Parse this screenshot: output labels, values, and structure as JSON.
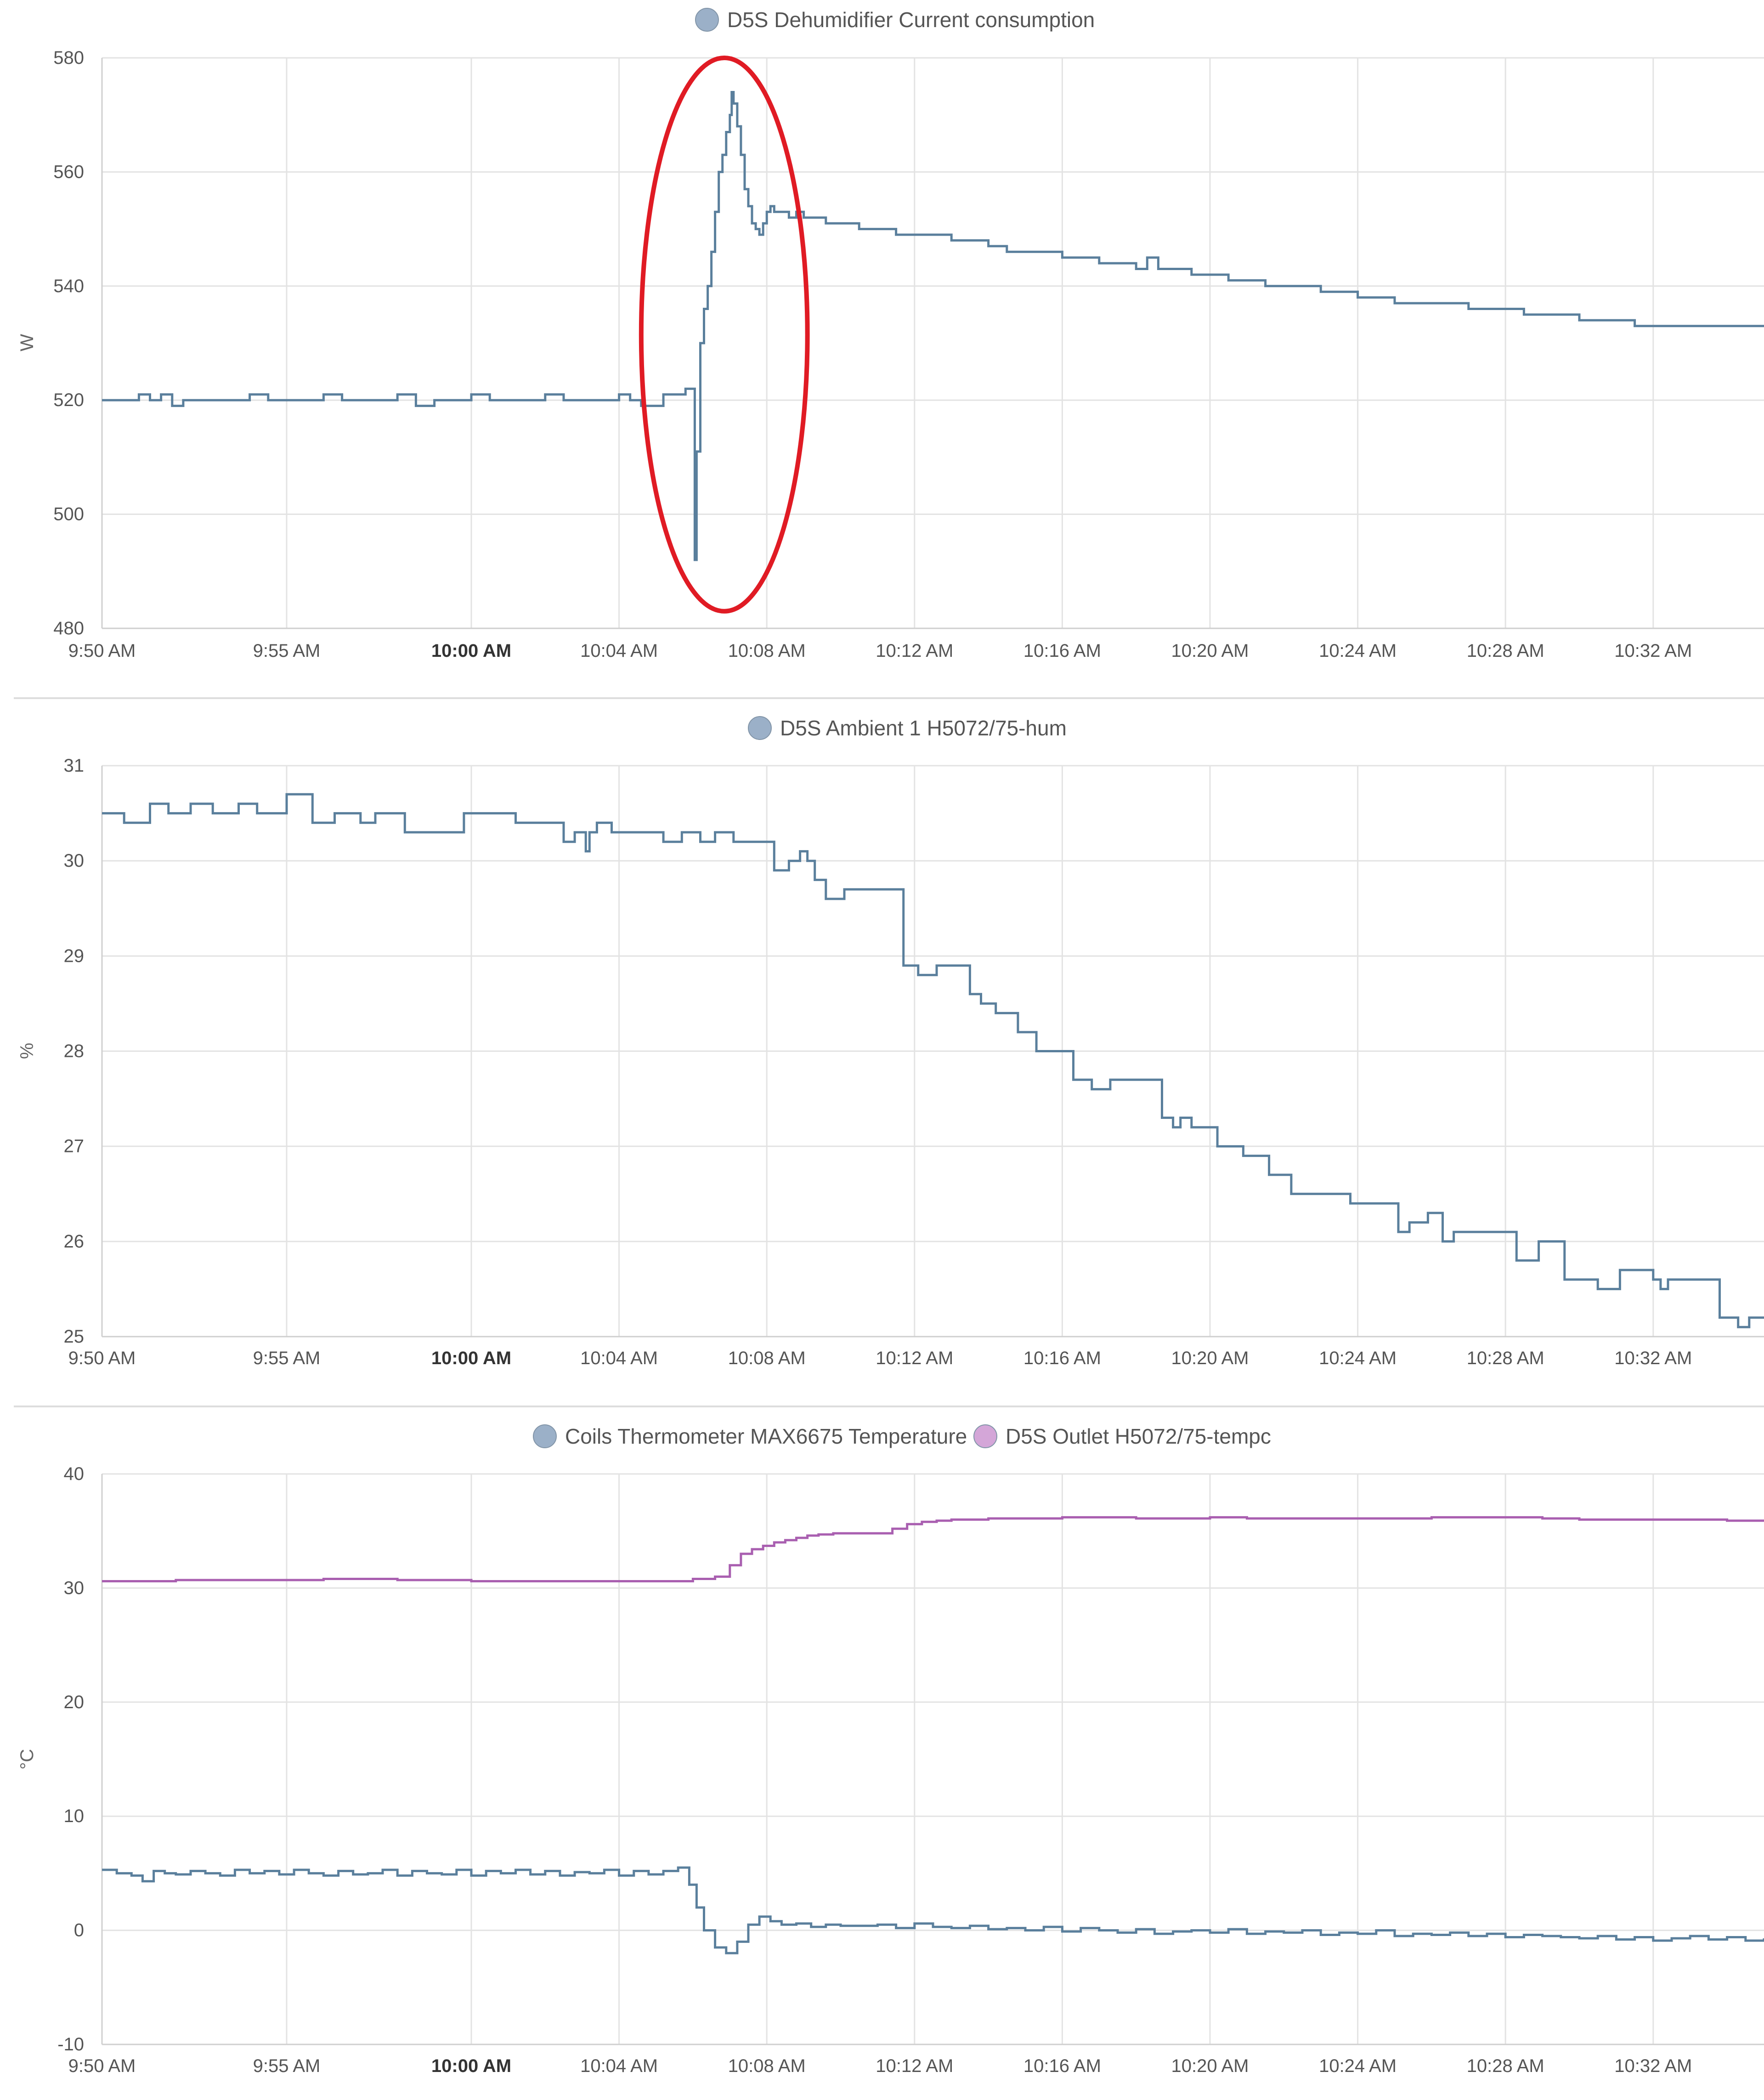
{
  "colors": {
    "background": "#ffffff",
    "grid": "#e3e3e3",
    "axis": "#cfcfcf",
    "separator": "#dddddd",
    "series_blue": "#5a7f9c",
    "legend_blue": "#9bb0c8",
    "series_purple": "#a95fb0",
    "legend_purple": "#d4a6d8",
    "annotation": "#e01b24"
  },
  "x_ticks": [
    {
      "label": "9:50 AM",
      "t": 0,
      "bold": false
    },
    {
      "label": "9:55 AM",
      "t": 5,
      "bold": false
    },
    {
      "label": "10:00 AM",
      "t": 10,
      "bold": true
    },
    {
      "label": "10:04 AM",
      "t": 14,
      "bold": false
    },
    {
      "label": "10:08 AM",
      "t": 18,
      "bold": false
    },
    {
      "label": "10:12 AM",
      "t": 22,
      "bold": false
    },
    {
      "label": "10:16 AM",
      "t": 26,
      "bold": false
    },
    {
      "label": "10:20 AM",
      "t": 30,
      "bold": false
    },
    {
      "label": "10:24 AM",
      "t": 34,
      "bold": false
    },
    {
      "label": "10:28 AM",
      "t": 38,
      "bold": false
    },
    {
      "label": "10:32 AM",
      "t": 42,
      "bold": false
    }
  ],
  "chart_data": [
    {
      "type": "line",
      "step": true,
      "unit": "W",
      "ylim": [
        480,
        580
      ],
      "yticks": [
        480,
        500,
        520,
        540,
        560,
        580
      ],
      "legend": [
        {
          "name": "D5S Dehumidifier Current consumption",
          "color": "#9bb0c8"
        }
      ],
      "annotation": {
        "shape": "ellipse",
        "color": "#e01b24",
        "x_range": [
          14.6,
          19.1
        ],
        "y_range": [
          483,
          580
        ]
      },
      "series": [
        {
          "name": "D5S Dehumidifier Current consumption",
          "color": "#5a7f9c",
          "x": [
            0,
            0.5,
            1,
            1.3,
            1.6,
            1.9,
            2.2,
            2.6,
            3,
            3.5,
            4,
            4.5,
            5,
            5.5,
            6,
            6.5,
            7,
            7.5,
            8,
            8.5,
            9,
            9.5,
            10,
            10.5,
            11,
            11.5,
            12,
            12.5,
            13,
            13.5,
            14,
            14.3,
            14.6,
            14.9,
            15.2,
            15.5,
            15.8,
            16.0,
            16.05,
            16.1,
            16.2,
            16.3,
            16.4,
            16.5,
            16.6,
            16.7,
            16.8,
            16.9,
            17.0,
            17.05,
            17.1,
            17.2,
            17.3,
            17.4,
            17.5,
            17.6,
            17.7,
            17.8,
            17.9,
            18.0,
            18.1,
            18.2,
            18.3,
            18.4,
            18.6,
            18.8,
            19.0,
            19.3,
            19.6,
            20,
            20.5,
            21,
            21.5,
            22,
            22.5,
            23,
            23.5,
            24,
            24.5,
            25,
            25.5,
            26,
            26.5,
            27,
            27.5,
            28,
            28.3,
            28.6,
            29,
            29.5,
            30,
            30.5,
            31,
            31.5,
            32,
            32.5,
            33,
            33.5,
            34,
            34.5,
            35,
            35.5,
            36,
            36.5,
            37,
            37.5,
            38,
            38.5,
            39,
            39.5,
            40,
            40.5,
            41,
            41.5,
            42,
            42.5,
            43,
            43.5,
            44,
            44.5,
            45
          ],
          "values": [
            520,
            520,
            521,
            520,
            521,
            519,
            520,
            520,
            520,
            520,
            521,
            520,
            520,
            520,
            521,
            520,
            520,
            520,
            521,
            519,
            520,
            520,
            521,
            520,
            520,
            520,
            521,
            520,
            520,
            520,
            521,
            520,
            519,
            519,
            521,
            521,
            522,
            522,
            492,
            511,
            530,
            536,
            540,
            546,
            553,
            560,
            563,
            567,
            570,
            574,
            572,
            568,
            563,
            557,
            554,
            551,
            550,
            549,
            551,
            553,
            554,
            553,
            553,
            553,
            552,
            553,
            552,
            552,
            551,
            551,
            550,
            550,
            549,
            549,
            549,
            548,
            548,
            547,
            546,
            546,
            546,
            545,
            545,
            544,
            544,
            543,
            545,
            543,
            543,
            542,
            542,
            541,
            541,
            540,
            540,
            540,
            539,
            539,
            538,
            538,
            537,
            537,
            537,
            537,
            536,
            536,
            536,
            535,
            535,
            535,
            534,
            534,
            534,
            533,
            533,
            533,
            533,
            533,
            533,
            533,
            533
          ]
        }
      ]
    },
    {
      "type": "line",
      "step": true,
      "unit": "%",
      "ylim": [
        25,
        31
      ],
      "yticks": [
        25,
        26,
        27,
        28,
        29,
        30,
        31
      ],
      "legend": [
        {
          "name": "D5S Ambient 1 H5072/75-hum",
          "color": "#9bb0c8"
        }
      ],
      "series": [
        {
          "name": "D5S Ambient 1 H5072/75-hum",
          "color": "#5a7f9c",
          "x": [
            0,
            0.6,
            1.3,
            1.8,
            2.4,
            3,
            3.7,
            4.2,
            5,
            5.7,
            6.3,
            7,
            7.4,
            8.2,
            9.8,
            11.2,
            12.5,
            12.8,
            13.1,
            13.2,
            13.4,
            13.6,
            13.8,
            14.0,
            15.2,
            15.7,
            16.2,
            16.6,
            17.1,
            17.4,
            18.2,
            18.6,
            18.9,
            19.1,
            19.3,
            19.6,
            20.1,
            20.5,
            21.7,
            22.1,
            22.6,
            23.5,
            23.8,
            24.2,
            24.8,
            25.3,
            26.3,
            26.8,
            27.3,
            28.7,
            29.0,
            29.2,
            29.5,
            30.2,
            30.9,
            31.6,
            32.2,
            32.6,
            33.8,
            35.1,
            35.4,
            35.9,
            36.3,
            36.6,
            37.2,
            38.3,
            38.9,
            39.6,
            40.5,
            41.1,
            42.0,
            42.2,
            42.4,
            42.8,
            43.8,
            44.3,
            44.6,
            45
          ],
          "values": [
            30.5,
            30.4,
            30.6,
            30.5,
            30.6,
            30.5,
            30.6,
            30.5,
            30.7,
            30.4,
            30.5,
            30.4,
            30.5,
            30.3,
            30.5,
            30.4,
            30.2,
            30.3,
            30.1,
            30.3,
            30.4,
            30.4,
            30.3,
            30.3,
            30.2,
            30.3,
            30.2,
            30.3,
            30.2,
            30.2,
            29.9,
            30.0,
            30.1,
            30.0,
            29.8,
            29.6,
            29.7,
            29.7,
            28.9,
            28.8,
            28.9,
            28.6,
            28.5,
            28.4,
            28.2,
            28.0,
            27.7,
            27.6,
            27.7,
            27.3,
            27.2,
            27.3,
            27.2,
            27.0,
            26.9,
            26.7,
            26.5,
            26.5,
            26.4,
            26.1,
            26.2,
            26.3,
            26.0,
            26.1,
            26.1,
            25.8,
            26.0,
            25.6,
            25.5,
            25.7,
            25.6,
            25.5,
            25.6,
            25.6,
            25.2,
            25.1,
            25.2,
            25.2
          ]
        }
      ]
    },
    {
      "type": "line",
      "step": true,
      "unit": "°C",
      "ylim": [
        -10,
        40
      ],
      "yticks": [
        -10,
        0,
        10,
        20,
        30,
        40
      ],
      "legend": [
        {
          "name": "Coils Thermometer MAX6675 Temperature",
          "color": "#9bb0c8"
        },
        {
          "name": "D5S Outlet H5072/75-tempc",
          "color": "#d4a6d8"
        }
      ],
      "series": [
        {
          "name": "Coils Thermometer MAX6675 Temperature",
          "color": "#5a7f9c",
          "x": [
            0,
            0.4,
            0.8,
            1.1,
            1.4,
            1.7,
            2,
            2.4,
            2.8,
            3.2,
            3.6,
            4,
            4.4,
            4.8,
            5.2,
            5.6,
            6,
            6.4,
            6.8,
            7.2,
            7.6,
            8,
            8.4,
            8.8,
            9.2,
            9.6,
            10,
            10.4,
            10.8,
            11.2,
            11.6,
            12,
            12.4,
            12.8,
            13.2,
            13.6,
            14,
            14.4,
            14.8,
            15.2,
            15.6,
            15.9,
            16.1,
            16.3,
            16.6,
            16.9,
            17.2,
            17.5,
            17.8,
            18.1,
            18.4,
            18.8,
            19.2,
            19.6,
            20,
            20.5,
            21,
            21.5,
            22,
            22.5,
            23,
            23.5,
            24,
            24.5,
            25,
            25.5,
            26,
            26.5,
            27,
            27.5,
            28,
            28.5,
            29,
            29.5,
            30,
            30.5,
            31,
            31.5,
            32,
            32.5,
            33,
            33.5,
            34,
            34.5,
            35,
            35.5,
            36,
            36.5,
            37,
            37.5,
            38,
            38.5,
            39,
            39.5,
            40,
            40.5,
            41,
            41.5,
            42,
            42.5,
            43,
            43.5,
            44,
            44.5,
            45
          ],
          "values": [
            5.3,
            5.0,
            4.8,
            4.3,
            5.2,
            5.0,
            4.9,
            5.2,
            5.0,
            4.8,
            5.3,
            5.0,
            5.2,
            4.9,
            5.3,
            5.0,
            4.8,
            5.2,
            4.9,
            5.0,
            5.3,
            4.8,
            5.2,
            5.0,
            4.9,
            5.3,
            4.8,
            5.2,
            5.0,
            5.3,
            4.9,
            5.2,
            4.8,
            5.1,
            5.0,
            5.3,
            4.8,
            5.2,
            4.9,
            5.2,
            5.5,
            4.0,
            2.0,
            0.0,
            -1.5,
            -2.0,
            -1.0,
            0.5,
            1.2,
            0.8,
            0.5,
            0.6,
            0.3,
            0.5,
            0.4,
            0.4,
            0.5,
            0.2,
            0.6,
            0.3,
            0.2,
            0.4,
            0.1,
            0.2,
            0.0,
            0.3,
            -0.1,
            0.2,
            0.0,
            -0.2,
            0.1,
            -0.3,
            -0.1,
            0.0,
            -0.2,
            0.1,
            -0.3,
            -0.1,
            -0.2,
            0.0,
            -0.4,
            -0.2,
            -0.3,
            0.0,
            -0.5,
            -0.3,
            -0.4,
            -0.2,
            -0.5,
            -0.3,
            -0.6,
            -0.4,
            -0.5,
            -0.6,
            -0.7,
            -0.5,
            -0.8,
            -0.6,
            -0.9,
            -0.7,
            -0.5,
            -0.8,
            -0.6,
            -0.9,
            -0.7
          ]
        },
        {
          "name": "D5S Outlet H5072/75-tempc",
          "color": "#a95fb0",
          "x": [
            0,
            2,
            4,
            6,
            8,
            10,
            12,
            14,
            15.2,
            16,
            16.6,
            17.0,
            17.3,
            17.6,
            17.9,
            18.2,
            18.5,
            18.8,
            19.1,
            19.4,
            19.8,
            20.2,
            20.6,
            21.0,
            21.4,
            21.8,
            22.2,
            22.6,
            23,
            24,
            25,
            26,
            27,
            28,
            29,
            30,
            31,
            32,
            33,
            34,
            35,
            36,
            37,
            38,
            39,
            40,
            41,
            42,
            43,
            44,
            45
          ],
          "values": [
            30.6,
            30.7,
            30.7,
            30.8,
            30.7,
            30.6,
            30.6,
            30.6,
            30.6,
            30.8,
            31.0,
            32.0,
            33.0,
            33.4,
            33.7,
            34.0,
            34.2,
            34.4,
            34.6,
            34.7,
            34.8,
            34.8,
            34.8,
            34.8,
            35.2,
            35.6,
            35.8,
            35.9,
            36.0,
            36.1,
            36.1,
            36.2,
            36.2,
            36.1,
            36.1,
            36.2,
            36.1,
            36.1,
            36.1,
            36.1,
            36.1,
            36.2,
            36.2,
            36.2,
            36.1,
            36.0,
            36.0,
            36.0,
            36.0,
            35.9,
            35.9
          ]
        }
      ]
    }
  ]
}
